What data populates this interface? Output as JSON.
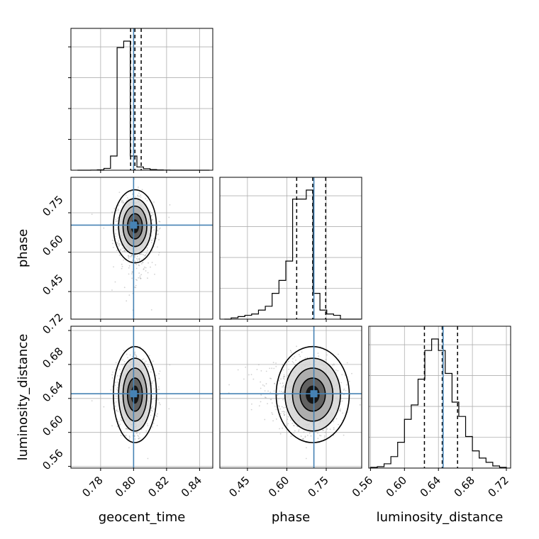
{
  "colors": {
    "truth": "#4682b4",
    "line": "#000000",
    "grid": "#b0b0b0",
    "scatter": "#9a9a9a"
  },
  "chart_data": {
    "type": "corner",
    "parameters": [
      "geocent_time",
      "phase",
      "luminosity_distance"
    ],
    "ranges": {
      "geocent_time": [
        0.762,
        0.848
      ],
      "phase": [
        0.345,
        0.885
      ],
      "luminosity_distance": [
        0.558,
        0.725
      ]
    },
    "ticks": {
      "geocent_time": [
        "0.78",
        "0.80",
        "0.82",
        "0.84"
      ],
      "phase": [
        "0.45",
        "0.60",
        "0.75"
      ],
      "luminosity_distance": [
        "0.56",
        "0.60",
        "0.64",
        "0.68",
        "0.72"
      ]
    },
    "truths": {
      "geocent_time": 0.8,
      "phase": 0.703,
      "luminosity_distance": 0.6455
    },
    "quantiles": {
      "geocent_time": [
        0.7982,
        0.8008,
        0.8046
      ],
      "phase": [
        0.6375,
        0.6985,
        0.748
      ],
      "luminosity_distance": [
        0.6235,
        0.6445,
        0.6625
      ]
    },
    "histograms": [
      {
        "parameter": "geocent_time",
        "edges": [
          0.766,
          0.77,
          0.774,
          0.778,
          0.782,
          0.786,
          0.79,
          0.794,
          0.798,
          0.802,
          0.806,
          0.81,
          0.814,
          0.818,
          0.822,
          0.826,
          0.83,
          0.834,
          0.838,
          0.842,
          0.846
        ],
        "counts": [
          0,
          0,
          1,
          3,
          14,
          110,
          950,
          1000,
          110,
          25,
          12,
          5,
          2,
          1,
          0,
          0,
          0,
          0,
          0,
          0
        ]
      },
      {
        "parameter": "phase",
        "edges": [
          0.362,
          0.388,
          0.414,
          0.44,
          0.466,
          0.492,
          0.518,
          0.544,
          0.57,
          0.596,
          0.622,
          0.648,
          0.674,
          0.7,
          0.726,
          0.752,
          0.778,
          0.804,
          0.83,
          0.856,
          0.882
        ],
        "counts": [
          0,
          10,
          20,
          30,
          40,
          70,
          100,
          200,
          300,
          450,
          930,
          930,
          1000,
          200,
          70,
          40,
          30,
          0,
          0,
          0
        ]
      },
      {
        "parameter": "luminosity_distance",
        "edges": [
          0.56,
          0.568,
          0.576,
          0.584,
          0.592,
          0.6,
          0.608,
          0.616,
          0.624,
          0.632,
          0.64,
          0.648,
          0.656,
          0.664,
          0.672,
          0.68,
          0.688,
          0.696,
          0.704,
          0.712,
          0.72
        ],
        "counts": [
          5,
          10,
          30,
          80,
          180,
          340,
          440,
          620,
          820,
          900,
          820,
          660,
          460,
          360,
          220,
          120,
          70,
          40,
          15,
          5
        ]
      }
    ]
  }
}
